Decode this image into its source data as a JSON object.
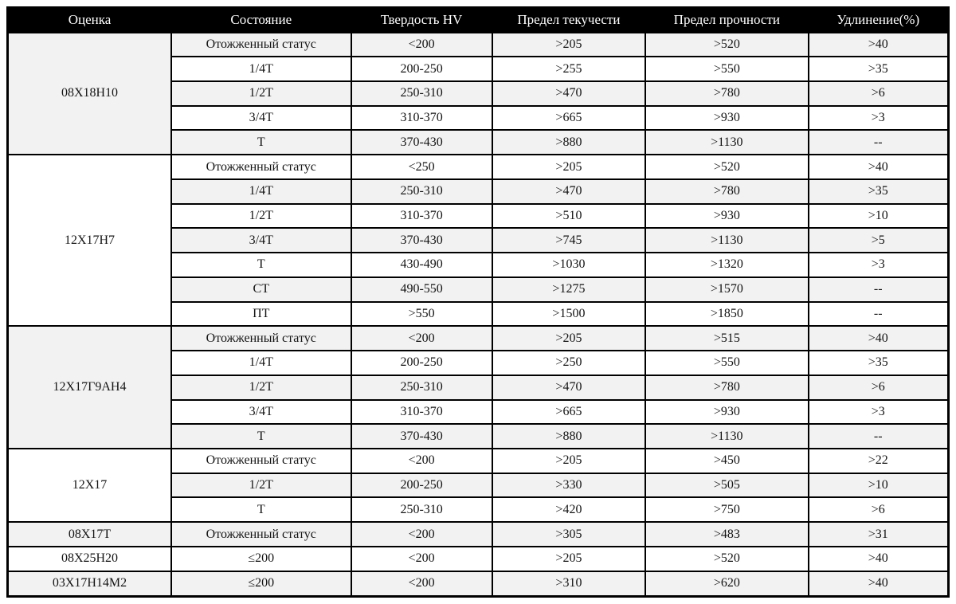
{
  "colors": {
    "header_bg": "#000000",
    "header_text": "#ffffff",
    "row_stripe": "#f2f2f2",
    "border": "#000000"
  },
  "table": {
    "columns": [
      "Оценка",
      "Состояние",
      "Твердость HV",
      "Предел текучести",
      "Предел прочности",
      "Удлинение(%)"
    ],
    "groups": [
      {
        "grade": "08Х18Н10",
        "rows": [
          [
            "Отожженный статус",
            "<200",
            ">205",
            ">520",
            ">40"
          ],
          [
            "1/4Т",
            "200-250",
            ">255",
            ">550",
            ">35"
          ],
          [
            "1/2Т",
            "250-310",
            ">470",
            ">780",
            ">6"
          ],
          [
            "3/4Т",
            "310-370",
            ">665",
            ">930",
            ">3"
          ],
          [
            "Т",
            "370-430",
            ">880",
            ">1130",
            "--"
          ]
        ]
      },
      {
        "grade": "12Х17Н7",
        "rows": [
          [
            "Отожженный статус",
            "<250",
            ">205",
            ">520",
            ">40"
          ],
          [
            "1/4Т",
            "250-310",
            ">470",
            ">780",
            ">35"
          ],
          [
            "1/2Т",
            "310-370",
            ">510",
            ">930",
            ">10"
          ],
          [
            "3/4Т",
            "370-430",
            ">745",
            ">1130",
            ">5"
          ],
          [
            "Т",
            "430-490",
            ">1030",
            ">1320",
            ">3"
          ],
          [
            "СТ",
            "490-550",
            ">1275",
            ">1570",
            "--"
          ],
          [
            "ПТ",
            ">550",
            ">1500",
            ">1850",
            "--"
          ]
        ]
      },
      {
        "grade": "12Х17Г9АН4",
        "rows": [
          [
            "Отожженный статус",
            "<200",
            ">205",
            ">515",
            ">40"
          ],
          [
            "1/4Т",
            "200-250",
            ">250",
            ">550",
            ">35"
          ],
          [
            "1/2Т",
            "250-310",
            ">470",
            ">780",
            ">6"
          ],
          [
            "3/4Т",
            "310-370",
            ">665",
            ">930",
            ">3"
          ],
          [
            "Т",
            "370-430",
            ">880",
            ">1130",
            "--"
          ]
        ]
      },
      {
        "grade": "12Х17",
        "rows": [
          [
            "Отожженный статус",
            "<200",
            ">205",
            ">450",
            ">22"
          ],
          [
            "1/2Т",
            "200-250",
            ">330",
            ">505",
            ">10"
          ],
          [
            "Т",
            "250-310",
            ">420",
            ">750",
            ">6"
          ]
        ]
      },
      {
        "grade": "08Х17Т",
        "rows": [
          [
            "Отожженный статус",
            "<200",
            ">305",
            ">483",
            ">31"
          ]
        ]
      },
      {
        "grade": "08Х25Н20",
        "rows": [
          [
            "≤200",
            "<200",
            ">205",
            ">520",
            ">40"
          ]
        ]
      },
      {
        "grade": "03Х17Н14М2",
        "rows": [
          [
            "≤200",
            "<200",
            ">310",
            ">620",
            ">40"
          ]
        ]
      }
    ]
  }
}
